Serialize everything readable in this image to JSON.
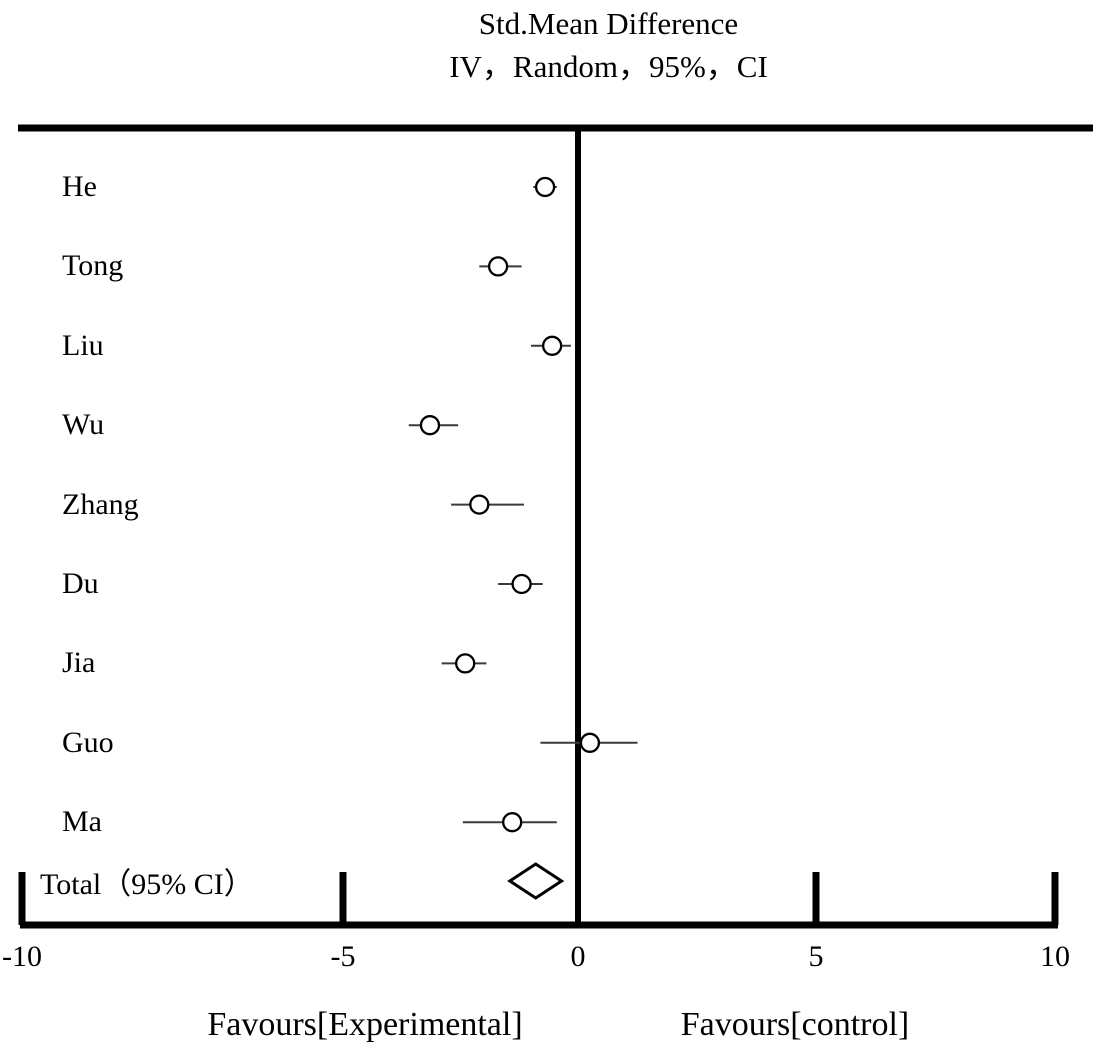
{
  "chart_data": {
    "type": "forest",
    "title": "Std.Mean Difference",
    "subtitle": "IV，Random，95%，CI",
    "x_axis": {
      "range": [
        -10,
        10
      ],
      "ticks": [
        -10,
        -5,
        0,
        5,
        10
      ],
      "tick_labels": [
        "-10",
        "-5",
        "0",
        "5",
        "10"
      ],
      "zero_line": 0,
      "grid": "off",
      "legend": "none"
    },
    "studies": [
      {
        "label": "He",
        "smd": -0.7,
        "ci_low": -0.95,
        "ci_high": -0.45
      },
      {
        "label": "Tong",
        "smd": -1.7,
        "ci_low": -2.1,
        "ci_high": -1.2
      },
      {
        "label": "Liu",
        "smd": -0.55,
        "ci_low": -1.0,
        "ci_high": -0.15
      },
      {
        "label": "Wu",
        "smd": -3.15,
        "ci_low": -3.6,
        "ci_high": -2.55
      },
      {
        "label": "Zhang",
        "smd": -2.1,
        "ci_low": -2.7,
        "ci_high": -1.15
      },
      {
        "label": "Du",
        "smd": -1.2,
        "ci_low": -1.7,
        "ci_high": -0.75
      },
      {
        "label": "Jia",
        "smd": -2.4,
        "ci_low": -2.9,
        "ci_high": -1.95
      },
      {
        "label": "Guo",
        "smd": 0.25,
        "ci_low": -0.8,
        "ci_high": 1.25
      },
      {
        "label": "Ma",
        "smd": -1.4,
        "ci_low": -2.45,
        "ci_high": -0.45
      }
    ],
    "total": {
      "label": "Total（95% CI）",
      "smd": -0.9,
      "ci_low": -1.45,
      "ci_high": -0.35
    },
    "footer": {
      "left": "Favours[Experimental]",
      "right": "Favours[control]"
    }
  }
}
